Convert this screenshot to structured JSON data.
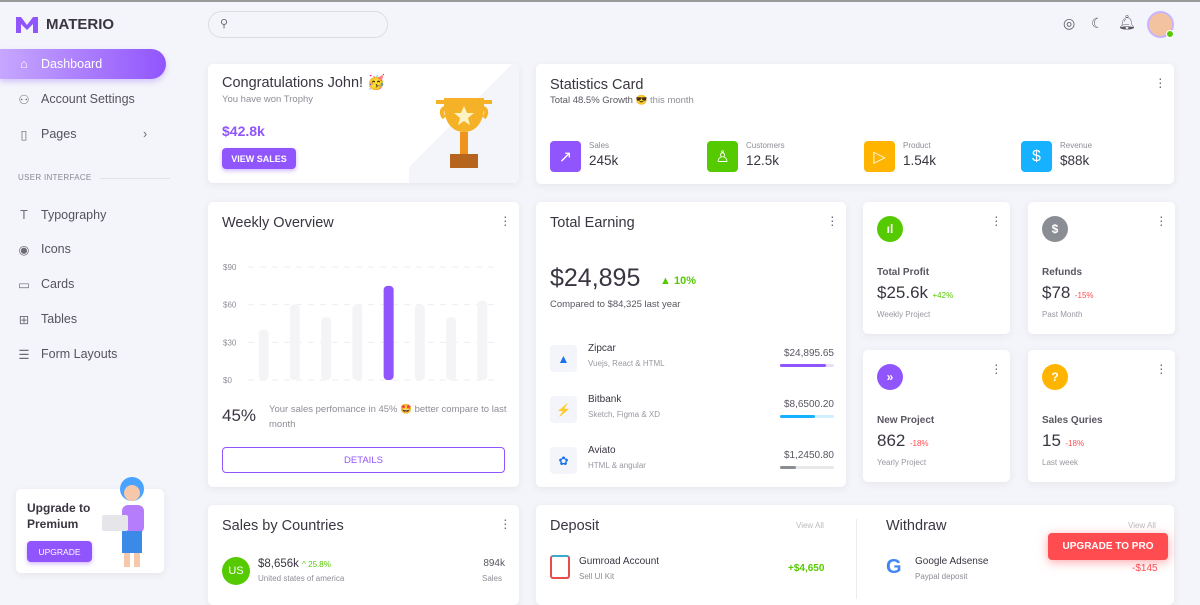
{
  "app": {
    "name": "MATERIO"
  },
  "search": {
    "placeholder": ""
  },
  "sidebar": {
    "items": [
      {
        "label": "Dashboard",
        "icon": "home-icon"
      },
      {
        "label": "Account Settings",
        "icon": "account-cog-icon"
      },
      {
        "label": "Pages",
        "icon": "file-icon"
      }
    ],
    "section": "USER INTERFACE",
    "ui_items": [
      {
        "label": "Typography",
        "icon": "typography-icon"
      },
      {
        "label": "Icons",
        "icon": "eye-icon"
      },
      {
        "label": "Cards",
        "icon": "card-icon"
      },
      {
        "label": "Tables",
        "icon": "table-icon"
      },
      {
        "label": "Form Layouts",
        "icon": "form-icon"
      }
    ],
    "upgrade": {
      "title": "Upgrade to Premium",
      "button": "UPGRADE"
    }
  },
  "congrats": {
    "title": "Congratulations John! 🥳",
    "subtitle": "You have won Trophy",
    "amount": "$42.8k",
    "button": "VIEW SALES"
  },
  "statistics": {
    "title": "Statistics Card",
    "growth": "Total 48.5% Growth 😎",
    "period": "this month",
    "items": [
      {
        "label": "Sales",
        "value": "245k",
        "color": "#9155fd"
      },
      {
        "label": "Customers",
        "value": "12.5k",
        "color": "#56ca00"
      },
      {
        "label": "Product",
        "value": "1.54k",
        "color": "#ffb400"
      },
      {
        "label": "Revenue",
        "value": "$88k",
        "color": "#16b1ff"
      }
    ]
  },
  "weekly": {
    "title": "Weekly Overview",
    "percent": "45%",
    "text": "Your sales perfomance in 45% 🤩 better compare to last month",
    "button": "DETAILS"
  },
  "chart_data": {
    "type": "bar",
    "y_ticks": [
      "$90",
      "$60",
      "$30",
      "$0"
    ],
    "ylim": [
      0,
      90
    ],
    "values": [
      40,
      60,
      50,
      60,
      75,
      60,
      50,
      63
    ],
    "highlight_index": 4,
    "highlight_color": "#9155fd",
    "bar_color": "#f4f4f6",
    "grid": true
  },
  "earning": {
    "title": "Total Earning",
    "amount": "$24,895",
    "change": "10%",
    "compare": "Compared to $84,325 last year",
    "items": [
      {
        "name": "Zipcar",
        "desc": "Vuejs, React & HTML",
        "amount": "$24,895.65",
        "progress": 85,
        "color": "#9155fd"
      },
      {
        "name": "Bitbank",
        "desc": "Sketch, Figma & XD",
        "amount": "$8,6500.20",
        "progress": 65,
        "color": "#16b1ff"
      },
      {
        "name": "Aviato",
        "desc": "HTML & angular",
        "amount": "$1,2450.80",
        "progress": 30,
        "color": "#8a8d93"
      }
    ]
  },
  "small_cards": [
    {
      "label": "Total Profit",
      "value": "$25.6k",
      "change": "+42%",
      "sub": "Weekly Project",
      "color": "#56ca00",
      "icon": "chart-icon",
      "glyph": "ıl",
      "positive": true
    },
    {
      "label": "Refunds",
      "value": "$78",
      "change": "-15%",
      "sub": "Past Month",
      "color": "#8a8d93",
      "icon": "dollar-icon",
      "glyph": "$",
      "positive": false
    },
    {
      "label": "New Project",
      "value": "862",
      "change": "-18%",
      "sub": "Yearly Project",
      "color": "#9155fd",
      "icon": "project-icon",
      "glyph": "»",
      "positive": false
    },
    {
      "label": "Sales Quries",
      "value": "15",
      "change": "-18%",
      "sub": "Last week",
      "color": "#ffb400",
      "icon": "help-icon",
      "glyph": "?",
      "positive": false
    }
  ],
  "countries": {
    "title": "Sales by Countries",
    "items": [
      {
        "code": "US",
        "amount": "$8,656k",
        "change": "25.8%",
        "country": "United states of america",
        "sales": "894k",
        "sales_label": "Sales"
      }
    ]
  },
  "deposit": {
    "title": "Deposit",
    "view_all": "View All",
    "items": [
      {
        "name": "Gumroad Account",
        "desc": "Sell UI Kit",
        "amount": "+$4,650"
      }
    ]
  },
  "withdraw": {
    "title": "Withdraw",
    "view_all": "View All",
    "items": [
      {
        "name": "Google Adsense",
        "desc": "Paypal deposit",
        "amount": "-$145"
      }
    ]
  },
  "upgrade_pro": "UPGRADE TO PRO"
}
